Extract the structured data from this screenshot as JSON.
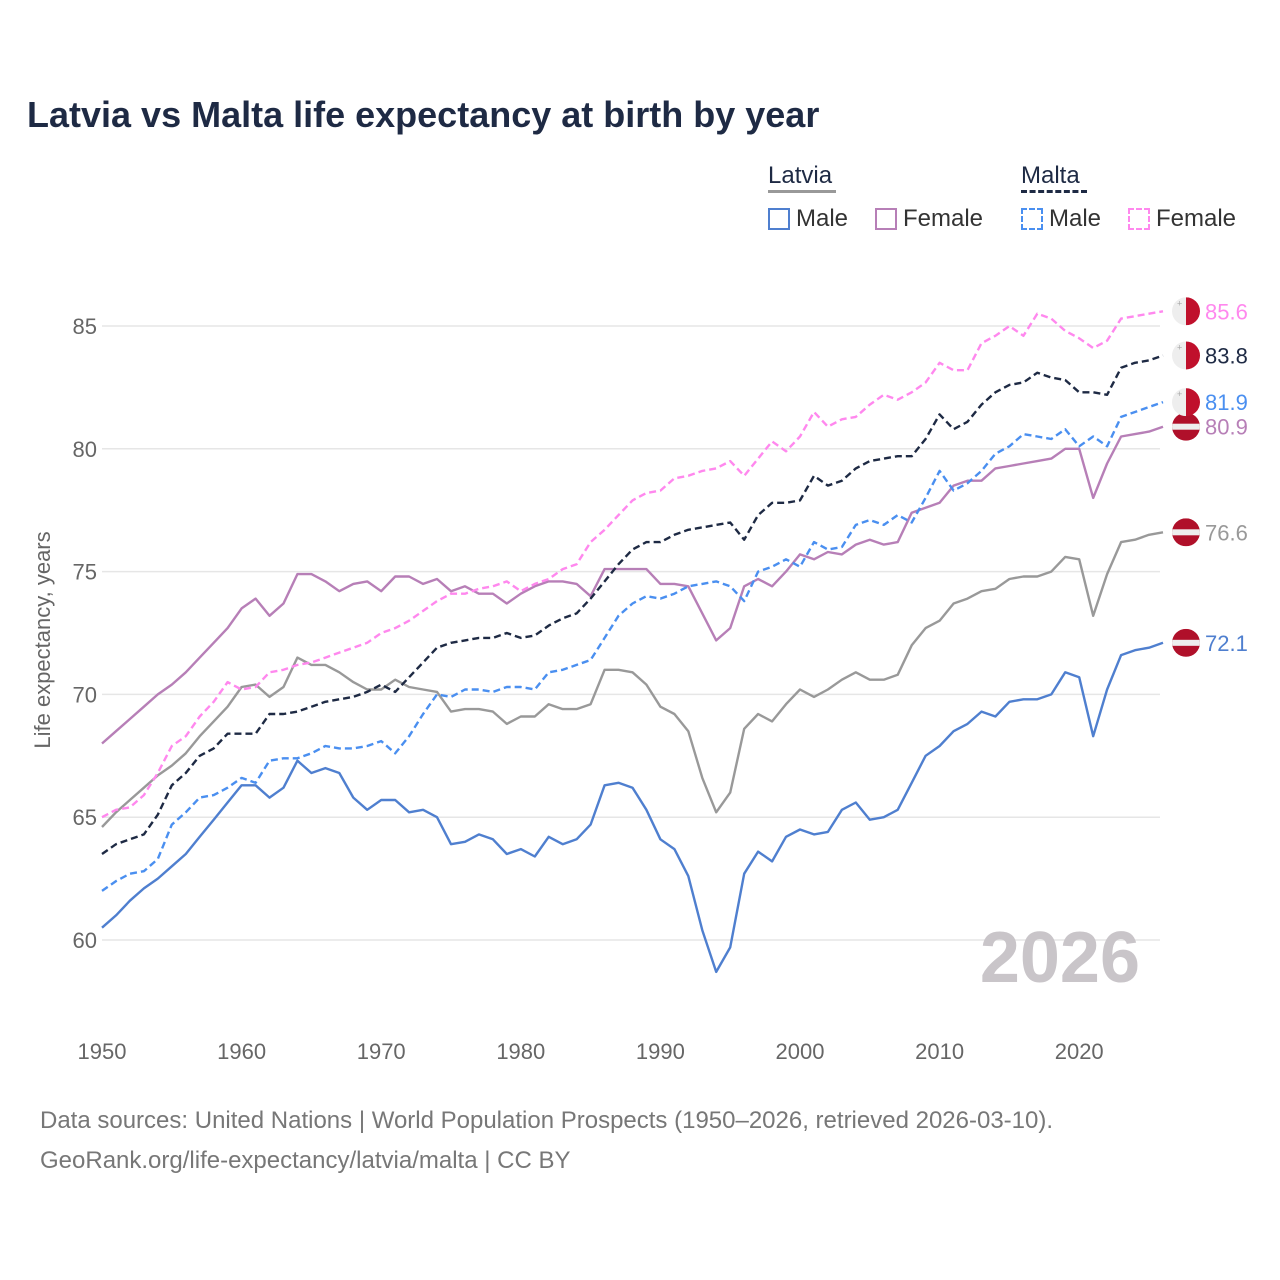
{
  "chart_data": {
    "type": "line",
    "title": "Latvia vs Malta life expectancy at birth by year",
    "xlabel": "",
    "ylabel": "Life expectancy, years",
    "xlim": [
      1950,
      2026
    ],
    "ylim": [
      57.5,
      87
    ],
    "x_ticks": [
      1950,
      1960,
      1970,
      1980,
      1990,
      2000,
      2010,
      2020
    ],
    "y_ticks": [
      60,
      65,
      70,
      75,
      80,
      85
    ],
    "grid": true,
    "legend_placement": "top-right",
    "watermark_year": "2026",
    "legend": {
      "groups": [
        {
          "name": "Latvia",
          "color": "#999999",
          "dashed": false
        },
        {
          "name": "Malta",
          "color": "#1e2a44",
          "dashed": true
        }
      ]
    },
    "x_start": 1950,
    "series": [
      {
        "name": "Latvia Total",
        "country": "Latvia",
        "color": "#999999",
        "dashed": false,
        "end_label": "76.6",
        "flag": "latvia",
        "legend_label": null,
        "values": [
          64.6,
          65.2,
          65.7,
          66.2,
          66.7,
          67.1,
          67.6,
          68.3,
          68.9,
          69.5,
          70.3,
          70.4,
          69.9,
          70.3,
          71.5,
          71.2,
          71.2,
          70.9,
          70.5,
          70.2,
          70.2,
          70.6,
          70.3,
          70.2,
          70.1,
          69.3,
          69.4,
          69.4,
          69.3,
          68.8,
          69.1,
          69.1,
          69.6,
          69.4,
          69.4,
          69.6,
          71.0,
          71.0,
          70.9,
          70.4,
          69.5,
          69.2,
          68.5,
          66.6,
          65.2,
          66.0,
          68.6,
          69.2,
          68.9,
          69.6,
          70.2,
          69.9,
          70.2,
          70.6,
          70.9,
          70.6,
          70.6,
          70.8,
          72.0,
          72.7,
          73.0,
          73.7,
          73.9,
          74.2,
          74.3,
          74.7,
          74.8,
          74.8,
          75.0,
          75.6,
          75.5,
          73.2,
          74.9,
          76.2,
          76.3,
          76.5,
          76.6
        ]
      },
      {
        "name": "Latvia Male",
        "country": "Latvia",
        "color": "#4f7fcf",
        "dashed": false,
        "end_label": "72.1",
        "flag": "latvia",
        "legend_label": "Male",
        "values": [
          60.5,
          61.0,
          61.6,
          62.1,
          62.5,
          63.0,
          63.5,
          64.2,
          64.9,
          65.6,
          66.3,
          66.3,
          65.8,
          66.2,
          67.3,
          66.8,
          67.0,
          66.8,
          65.8,
          65.3,
          65.7,
          65.7,
          65.2,
          65.3,
          65.0,
          63.9,
          64.0,
          64.3,
          64.1,
          63.5,
          63.7,
          63.4,
          64.2,
          63.9,
          64.1,
          64.7,
          66.3,
          66.4,
          66.2,
          65.3,
          64.1,
          63.7,
          62.6,
          60.4,
          58.7,
          59.7,
          62.7,
          63.6,
          63.2,
          64.2,
          64.5,
          64.3,
          64.4,
          65.3,
          65.6,
          64.9,
          65.0,
          65.3,
          66.4,
          67.5,
          67.9,
          68.5,
          68.8,
          69.3,
          69.1,
          69.7,
          69.8,
          69.8,
          70.0,
          70.9,
          70.7,
          68.3,
          70.2,
          71.6,
          71.8,
          71.9,
          72.1
        ]
      },
      {
        "name": "Latvia Female",
        "country": "Latvia",
        "color": "#b77fb7",
        "dashed": false,
        "end_label": "80.9",
        "flag": "latvia",
        "legend_label": "Female",
        "values": [
          68.0,
          68.5,
          69.0,
          69.5,
          70.0,
          70.4,
          70.9,
          71.5,
          72.1,
          72.7,
          73.5,
          73.9,
          73.2,
          73.7,
          74.9,
          74.9,
          74.6,
          74.2,
          74.5,
          74.6,
          74.2,
          74.8,
          74.8,
          74.5,
          74.7,
          74.2,
          74.4,
          74.1,
          74.1,
          73.7,
          74.1,
          74.4,
          74.6,
          74.6,
          74.5,
          74.0,
          75.1,
          75.1,
          75.1,
          75.1,
          74.5,
          74.5,
          74.4,
          73.3,
          72.2,
          72.7,
          74.4,
          74.7,
          74.4,
          75.0,
          75.7,
          75.5,
          75.8,
          75.7,
          76.1,
          76.3,
          76.1,
          76.2,
          77.4,
          77.6,
          77.8,
          78.5,
          78.7,
          78.7,
          79.2,
          79.3,
          79.4,
          79.5,
          79.6,
          80.0,
          80.0,
          78.0,
          79.4,
          80.5,
          80.6,
          80.7,
          80.9
        ]
      },
      {
        "name": "Malta Total",
        "country": "Malta",
        "color": "#1e2a44",
        "dashed": true,
        "end_label": "83.8",
        "flag": "malta",
        "legend_label": null,
        "values": [
          63.5,
          63.9,
          64.1,
          64.3,
          65.1,
          66.3,
          66.8,
          67.5,
          67.8,
          68.4,
          68.4,
          68.4,
          69.2,
          69.2,
          69.3,
          69.5,
          69.7,
          69.8,
          69.9,
          70.1,
          70.4,
          70.1,
          70.7,
          71.3,
          71.9,
          72.1,
          72.2,
          72.3,
          72.3,
          72.5,
          72.3,
          72.4,
          72.8,
          73.1,
          73.3,
          73.9,
          74.6,
          75.3,
          75.9,
          76.2,
          76.2,
          76.5,
          76.7,
          76.8,
          76.9,
          77.0,
          76.3,
          77.3,
          77.8,
          77.8,
          77.9,
          78.9,
          78.5,
          78.7,
          79.2,
          79.5,
          79.6,
          79.7,
          79.7,
          80.4,
          81.4,
          80.8,
          81.1,
          81.8,
          82.3,
          82.6,
          82.7,
          83.1,
          82.9,
          82.8,
          82.3,
          82.3,
          82.2,
          83.3,
          83.5,
          83.6,
          83.8
        ]
      },
      {
        "name": "Malta Male",
        "country": "Malta",
        "color": "#4a8ff0",
        "dashed": true,
        "end_label": "81.9",
        "flag": "malta",
        "legend_label": "Male",
        "values": [
          62.0,
          62.4,
          62.7,
          62.8,
          63.3,
          64.7,
          65.2,
          65.8,
          65.9,
          66.2,
          66.6,
          66.4,
          67.3,
          67.4,
          67.4,
          67.6,
          67.9,
          67.8,
          67.8,
          67.9,
          68.1,
          67.6,
          68.3,
          69.2,
          70.0,
          69.9,
          70.2,
          70.2,
          70.1,
          70.3,
          70.3,
          70.2,
          70.9,
          71.0,
          71.2,
          71.4,
          72.3,
          73.2,
          73.7,
          74.0,
          73.9,
          74.1,
          74.4,
          74.5,
          74.6,
          74.4,
          73.8,
          75.0,
          75.2,
          75.5,
          75.2,
          76.2,
          75.9,
          76.0,
          76.9,
          77.1,
          76.9,
          77.3,
          77.0,
          78.0,
          79.1,
          78.3,
          78.6,
          79.1,
          79.8,
          80.1,
          80.6,
          80.5,
          80.4,
          80.8,
          80.1,
          80.5,
          80.1,
          81.3,
          81.5,
          81.7,
          81.9
        ]
      },
      {
        "name": "Malta Female",
        "country": "Malta",
        "color": "#ff88ee",
        "dashed": true,
        "end_label": "85.6",
        "flag": "malta",
        "legend_label": "Female",
        "values": [
          65.0,
          65.3,
          65.4,
          65.9,
          66.8,
          67.9,
          68.3,
          69.1,
          69.7,
          70.5,
          70.2,
          70.3,
          70.9,
          71.0,
          71.2,
          71.3,
          71.5,
          71.7,
          71.9,
          72.1,
          72.5,
          72.7,
          73.0,
          73.4,
          73.8,
          74.1,
          74.1,
          74.3,
          74.4,
          74.6,
          74.2,
          74.5,
          74.7,
          75.1,
          75.3,
          76.2,
          76.7,
          77.3,
          77.9,
          78.2,
          78.3,
          78.8,
          78.9,
          79.1,
          79.2,
          79.5,
          78.9,
          79.6,
          80.3,
          79.9,
          80.5,
          81.5,
          80.9,
          81.2,
          81.3,
          81.8,
          82.2,
          82.0,
          82.3,
          82.7,
          83.5,
          83.2,
          83.2,
          84.3,
          84.6,
          85.0,
          84.6,
          85.5,
          85.3,
          84.8,
          84.5,
          84.1,
          84.4,
          85.3,
          85.4,
          85.5,
          85.6
        ]
      }
    ]
  },
  "footer": {
    "line1": "Data sources: United Nations | World Population Prospects (1950–2026, retrieved 2026-03-10).",
    "line2": "GeoRank.org/life-expectancy/latvia/malta | CC BY"
  }
}
